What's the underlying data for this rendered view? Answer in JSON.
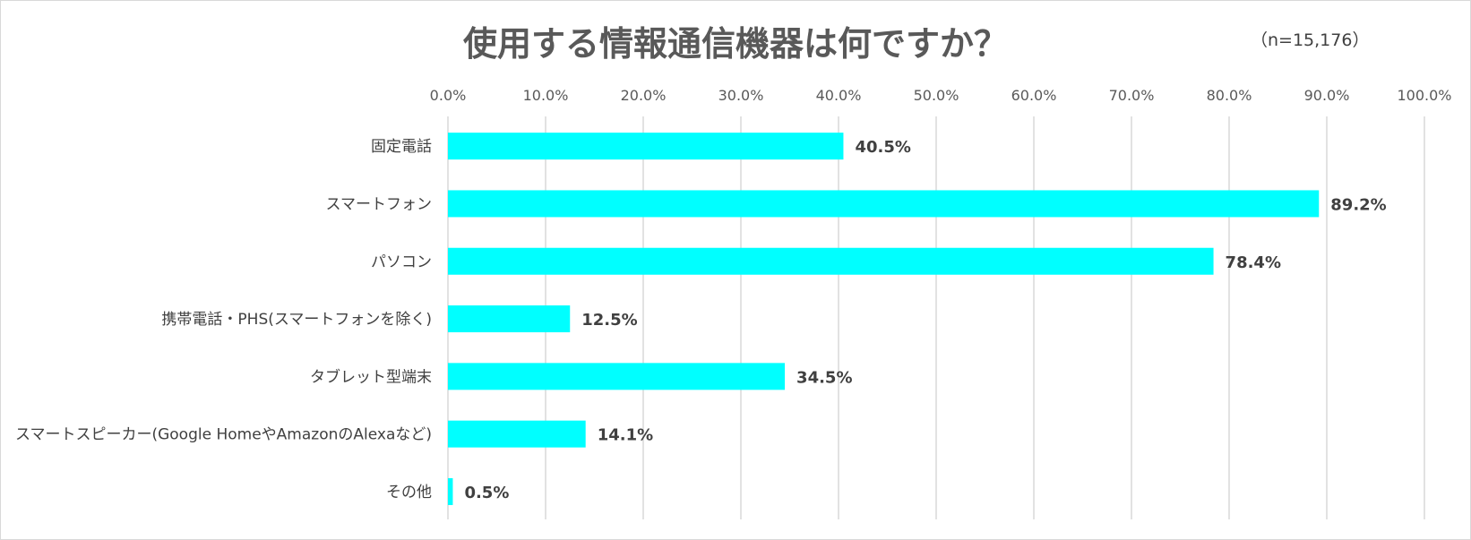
{
  "chart_data": {
    "type": "bar",
    "orientation": "horizontal",
    "title": "使用する情報通信機器は何ですか？",
    "subtitle": "（n=15,176）",
    "categories": [
      "固定電話",
      "スマートフォン",
      "パソコン",
      "携帯電話・PHS(スマートフォンを除く)",
      "タブレット型端末",
      "スマートスピーカー(Google HomeやAmazonのAlexaなど)",
      "その他"
    ],
    "values": [
      40.5,
      89.2,
      78.4,
      12.5,
      34.5,
      14.1,
      0.5
    ],
    "value_labels": [
      "40.5%",
      "89.2%",
      "78.4%",
      "12.5%",
      "34.5%",
      "14.1%",
      "0.5%"
    ],
    "x_ticks": [
      "0.0%",
      "10.0%",
      "20.0%",
      "30.0%",
      "40.0%",
      "50.0%",
      "60.0%",
      "70.0%",
      "80.0%",
      "90.0%",
      "100.0%"
    ],
    "xlim": [
      0,
      100
    ],
    "x_axis_position": "top",
    "grid": true,
    "bar_color": "#00FFFF",
    "grid_color": "#d9d9d9",
    "xlabel": "",
    "ylabel": ""
  }
}
